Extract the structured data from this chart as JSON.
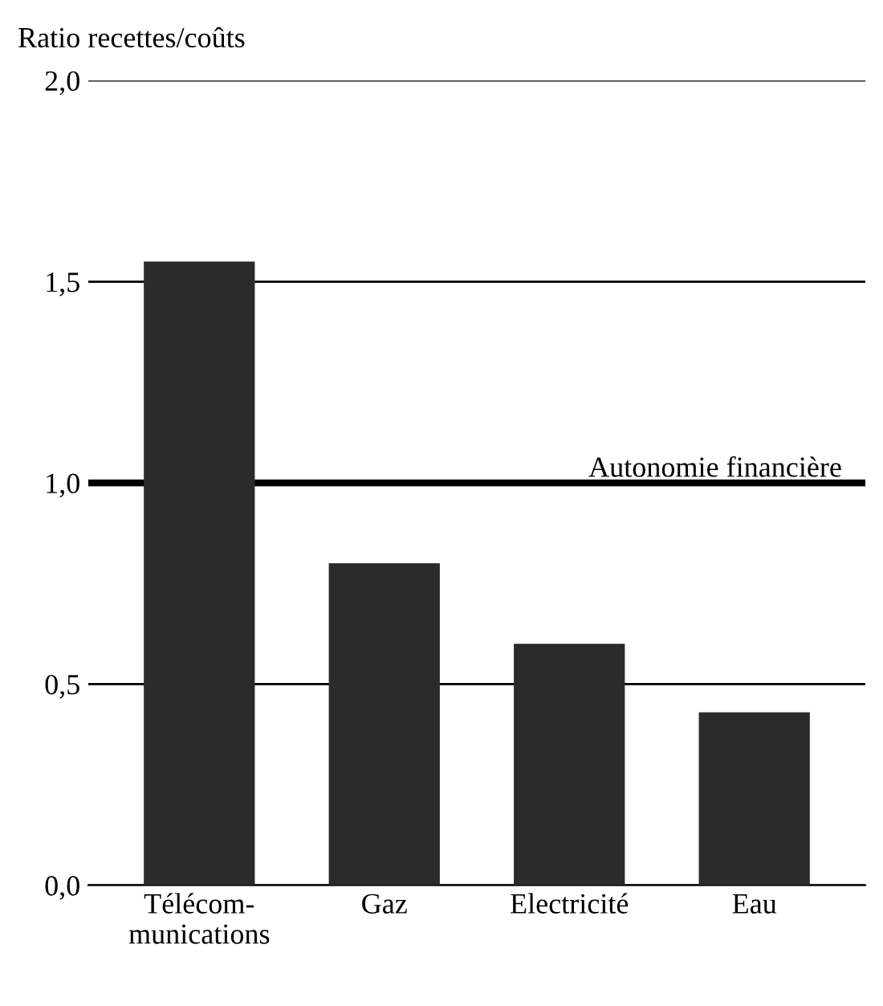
{
  "chart_data": {
    "type": "bar",
    "ylabel": "Ratio recettes/coûts",
    "categories": [
      "Télécom-\nmunications",
      "Gaz",
      "Electricité",
      "Eau"
    ],
    "values": [
      1.55,
      0.8,
      0.6,
      0.43
    ],
    "color": "#2b2b2b",
    "ylim": [
      0,
      2.0
    ],
    "yticks": [
      {
        "value": 0,
        "label": "0,0"
      },
      {
        "value": 0.5,
        "label": "0,5"
      },
      {
        "value": 1.0,
        "label": "1,0"
      },
      {
        "value": 1.5,
        "label": "1,5"
      },
      {
        "value": 2.0,
        "label": "2,0"
      }
    ],
    "grid": "y",
    "ref_lines": [
      {
        "axis": "y",
        "value": 1.0,
        "label": "Autonomie financière",
        "color": "#000000",
        "line_style": "solid"
      }
    ]
  }
}
